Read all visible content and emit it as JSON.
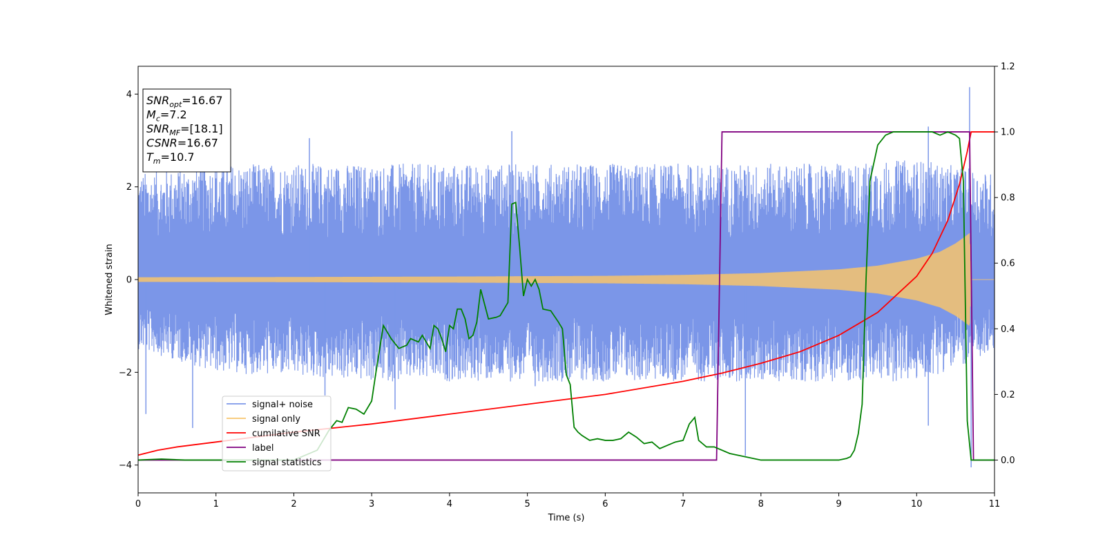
{
  "chart_data": {
    "type": "line",
    "xlabel": "Time (s)",
    "ylabel": "Whitened strain",
    "xlim": [
      0,
      11
    ],
    "ylim_left": [
      -4.6,
      4.6
    ],
    "ylim_right": [
      -0.1,
      1.2
    ],
    "x_ticks": [
      "0",
      "1",
      "2",
      "3",
      "4",
      "5",
      "6",
      "7",
      "8",
      "9",
      "10",
      "11"
    ],
    "y_ticks_left": [
      "4",
      "2",
      "0",
      "−2",
      "−4"
    ],
    "y_ticks_right": [
      "1.2",
      "1.0",
      "0.8",
      "0.6",
      "0.4",
      "0.2",
      "0.0"
    ],
    "info_box": [
      {
        "name": "SNR",
        "sub": "opt",
        "value": "=16.67"
      },
      {
        "name": "M",
        "sub": "c",
        "value": "=7.2"
      },
      {
        "name": "SNR",
        "sub": "MF",
        "value": "=[18.1]"
      },
      {
        "name": "CSNR",
        "sub": "",
        "value": "=16.67"
      },
      {
        "name": "T",
        "sub": "m",
        "value": "=10.7"
      }
    ],
    "legend_position": "lower-left",
    "series": [
      {
        "name": "signal+ noise",
        "color": "#7b96e8",
        "axis": "left",
        "description": "noisy strain, envelope approx",
        "envelope_upper": [
          [
            0,
            2.3
          ],
          [
            1,
            2.5
          ],
          [
            2,
            2.5
          ],
          [
            3,
            2.5
          ],
          [
            4,
            2.5
          ],
          [
            5,
            2.5
          ],
          [
            6,
            2.5
          ],
          [
            7,
            2.5
          ],
          [
            8,
            2.5
          ],
          [
            9,
            2.5
          ],
          [
            10,
            2.6
          ],
          [
            11,
            2.3
          ]
        ],
        "envelope_lower": [
          [
            0,
            -1.5
          ],
          [
            1,
            -2.0
          ],
          [
            2,
            -2.1
          ],
          [
            3,
            -2.2
          ],
          [
            4,
            -2.2
          ],
          [
            5,
            -2.2
          ],
          [
            6,
            -2.2
          ],
          [
            7,
            -2.2
          ],
          [
            8,
            -2.2
          ],
          [
            9,
            -2.2
          ],
          [
            10,
            -2.2
          ],
          [
            11,
            -1.6
          ]
        ],
        "spikes": [
          [
            0.1,
            -2.9
          ],
          [
            0.7,
            -3.2
          ],
          [
            2.2,
            3.05
          ],
          [
            2.4,
            -2.5
          ],
          [
            3.3,
            -2.8
          ],
          [
            4.8,
            3.2
          ],
          [
            5.1,
            -2.3
          ],
          [
            7.45,
            1.05
          ],
          [
            7.8,
            -3.8
          ],
          [
            10.15,
            3.3
          ],
          [
            10.15,
            -3.15
          ],
          [
            10.68,
            4.15
          ],
          [
            10.7,
            -4.05
          ],
          [
            11.0,
            -2.4
          ]
        ]
      },
      {
        "name": "signal only",
        "color": "#f7c46c",
        "axis": "left",
        "description": "chirp envelope",
        "envelope": [
          [
            0,
            0.05
          ],
          [
            2,
            0.055
          ],
          [
            4,
            0.065
          ],
          [
            6,
            0.08
          ],
          [
            7,
            0.1
          ],
          [
            8,
            0.14
          ],
          [
            9,
            0.22
          ],
          [
            9.5,
            0.3
          ],
          [
            10,
            0.45
          ],
          [
            10.3,
            0.6
          ],
          [
            10.5,
            0.78
          ],
          [
            10.6,
            0.9
          ],
          [
            10.68,
            1.0
          ],
          [
            10.7,
            0.0
          ],
          [
            11,
            0.0
          ]
        ]
      },
      {
        "name": "cumilative SNR",
        "color": "#ff0000",
        "axis": "right",
        "x": [
          0,
          0.25,
          0.5,
          1,
          2,
          3,
          4,
          5,
          6,
          7,
          7.5,
          8,
          8.5,
          9,
          9.5,
          10,
          10.2,
          10.4,
          10.55,
          10.65,
          10.7,
          11
        ],
        "values": [
          0.015,
          0.03,
          0.04,
          0.055,
          0.085,
          0.11,
          0.14,
          0.17,
          0.2,
          0.24,
          0.265,
          0.295,
          0.33,
          0.38,
          0.45,
          0.56,
          0.63,
          0.73,
          0.84,
          0.94,
          1.0,
          1.0
        ]
      },
      {
        "name": "label",
        "color": "#800080",
        "axis": "right",
        "x": [
          0,
          7.43,
          7.5,
          10.68,
          10.73,
          11
        ],
        "values": [
          0.0,
          0.0,
          1.0,
          1.0,
          0.0,
          0.0
        ]
      },
      {
        "name": "signal statistics",
        "color": "#008000",
        "axis": "right",
        "x": [
          0,
          0.3,
          0.6,
          1,
          1.5,
          2,
          2.3,
          2.45,
          2.55,
          2.62,
          2.7,
          2.8,
          2.9,
          3.0,
          3.05,
          3.15,
          3.25,
          3.35,
          3.45,
          3.5,
          3.6,
          3.65,
          3.7,
          3.75,
          3.8,
          3.85,
          3.9,
          3.95,
          4.0,
          4.05,
          4.1,
          4.15,
          4.2,
          4.25,
          4.3,
          4.35,
          4.4,
          4.5,
          4.6,
          4.65,
          4.7,
          4.75,
          4.8,
          4.85,
          4.9,
          4.95,
          5.0,
          5.05,
          5.1,
          5.15,
          5.2,
          5.3,
          5.4,
          5.45,
          5.5,
          5.55,
          5.6,
          5.65,
          5.7,
          5.8,
          5.9,
          6.0,
          6.1,
          6.2,
          6.3,
          6.4,
          6.5,
          6.6,
          6.7,
          6.8,
          6.9,
          7.0,
          7.08,
          7.15,
          7.2,
          7.3,
          7.4,
          7.6,
          8.0,
          8.5,
          9.0,
          9.1,
          9.15,
          9.2,
          9.25,
          9.3,
          9.35,
          9.4,
          9.5,
          9.6,
          9.7,
          9.8,
          9.9,
          10.0,
          10.1,
          10.2,
          10.3,
          10.4,
          10.5,
          10.55,
          10.6,
          10.65,
          10.7,
          11.0
        ],
        "values": [
          0.0,
          0.003,
          0.0,
          0.0,
          0.0,
          0.0,
          0.03,
          0.09,
          0.12,
          0.115,
          0.16,
          0.155,
          0.14,
          0.18,
          0.26,
          0.41,
          0.37,
          0.34,
          0.35,
          0.37,
          0.36,
          0.38,
          0.36,
          0.34,
          0.41,
          0.4,
          0.37,
          0.33,
          0.41,
          0.4,
          0.46,
          0.46,
          0.43,
          0.37,
          0.38,
          0.42,
          0.52,
          0.43,
          0.435,
          0.44,
          0.46,
          0.48,
          0.78,
          0.785,
          0.65,
          0.5,
          0.55,
          0.53,
          0.55,
          0.52,
          0.46,
          0.455,
          0.42,
          0.4,
          0.26,
          0.23,
          0.1,
          0.085,
          0.075,
          0.06,
          0.065,
          0.06,
          0.06,
          0.065,
          0.085,
          0.07,
          0.05,
          0.055,
          0.035,
          0.045,
          0.055,
          0.06,
          0.11,
          0.13,
          0.06,
          0.04,
          0.04,
          0.02,
          0.0,
          0.0,
          0.0,
          0.005,
          0.01,
          0.03,
          0.08,
          0.17,
          0.55,
          0.85,
          0.96,
          0.99,
          1.0,
          1.0,
          1.0,
          1.0,
          1.0,
          1.0,
          0.99,
          1.0,
          0.99,
          0.98,
          0.85,
          0.12,
          0.0,
          0.0
        ]
      }
    ]
  }
}
